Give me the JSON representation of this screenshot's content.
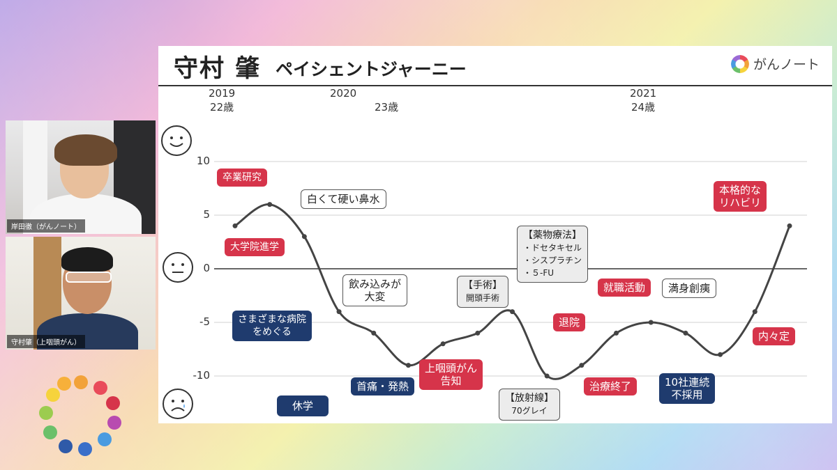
{
  "participants": [
    {
      "name": "岸田徹（がんノート）"
    },
    {
      "name": "守村肇（上咽頭がん）"
    }
  ],
  "slide": {
    "title_name": "守村 肇",
    "title_sub": "ペイシェントジャーニー",
    "brand": "がんノート",
    "years": [
      {
        "year": "2019",
        "age": "22歳"
      },
      {
        "year": "2020",
        "age": ""
      },
      {
        "year": "",
        "age": "23歳"
      },
      {
        "year": "2021",
        "age": ""
      },
      {
        "year": "",
        "age": "24歳"
      }
    ],
    "y_ticks": [
      "10",
      "5",
      "0",
      "-5",
      "-10"
    ],
    "faces": {
      "top": "happy-face",
      "middle": "neutral-face",
      "bottom": "sad-face"
    }
  },
  "callouts": [
    {
      "text": "卒業研究",
      "style": "red"
    },
    {
      "text": "大学院進学",
      "style": "red"
    },
    {
      "text": "白くて硬い鼻水",
      "style": "white"
    },
    {
      "text": "さまざまな病院\nをめぐる",
      "style": "navy"
    },
    {
      "text": "飲み込みが\n大変",
      "style": "white"
    },
    {
      "text": "休学",
      "style": "navy"
    },
    {
      "text": "首痛・発熱",
      "style": "navy"
    },
    {
      "text": "上咽頭がん\n告知",
      "style": "red"
    },
    {
      "text": "【手術】",
      "sub": "開頭手術",
      "style": "gray"
    },
    {
      "text": "【薬物療法】",
      "sub": "・ドセタキセル\n・シスプラチン\n・５-FU",
      "style": "gray"
    },
    {
      "text": "【放射線】",
      "sub": "70グレイ",
      "style": "gray"
    },
    {
      "text": "退院",
      "style": "red"
    },
    {
      "text": "就職活動",
      "style": "red"
    },
    {
      "text": "治療終了",
      "style": "red"
    },
    {
      "text": "満身創痍",
      "style": "white"
    },
    {
      "text": "10社連続\n不採用",
      "style": "navy"
    },
    {
      "text": "本格的な\nリハビリ",
      "style": "red"
    },
    {
      "text": "内々定",
      "style": "red"
    }
  ],
  "chart_data": {
    "type": "line",
    "ylim": [
      -10,
      10
    ],
    "values": [
      4,
      6,
      3,
      -4,
      -6,
      -9,
      -7,
      -6,
      -4,
      -10,
      -9,
      -6,
      -5,
      -6,
      -8,
      -4,
      4
    ]
  }
}
